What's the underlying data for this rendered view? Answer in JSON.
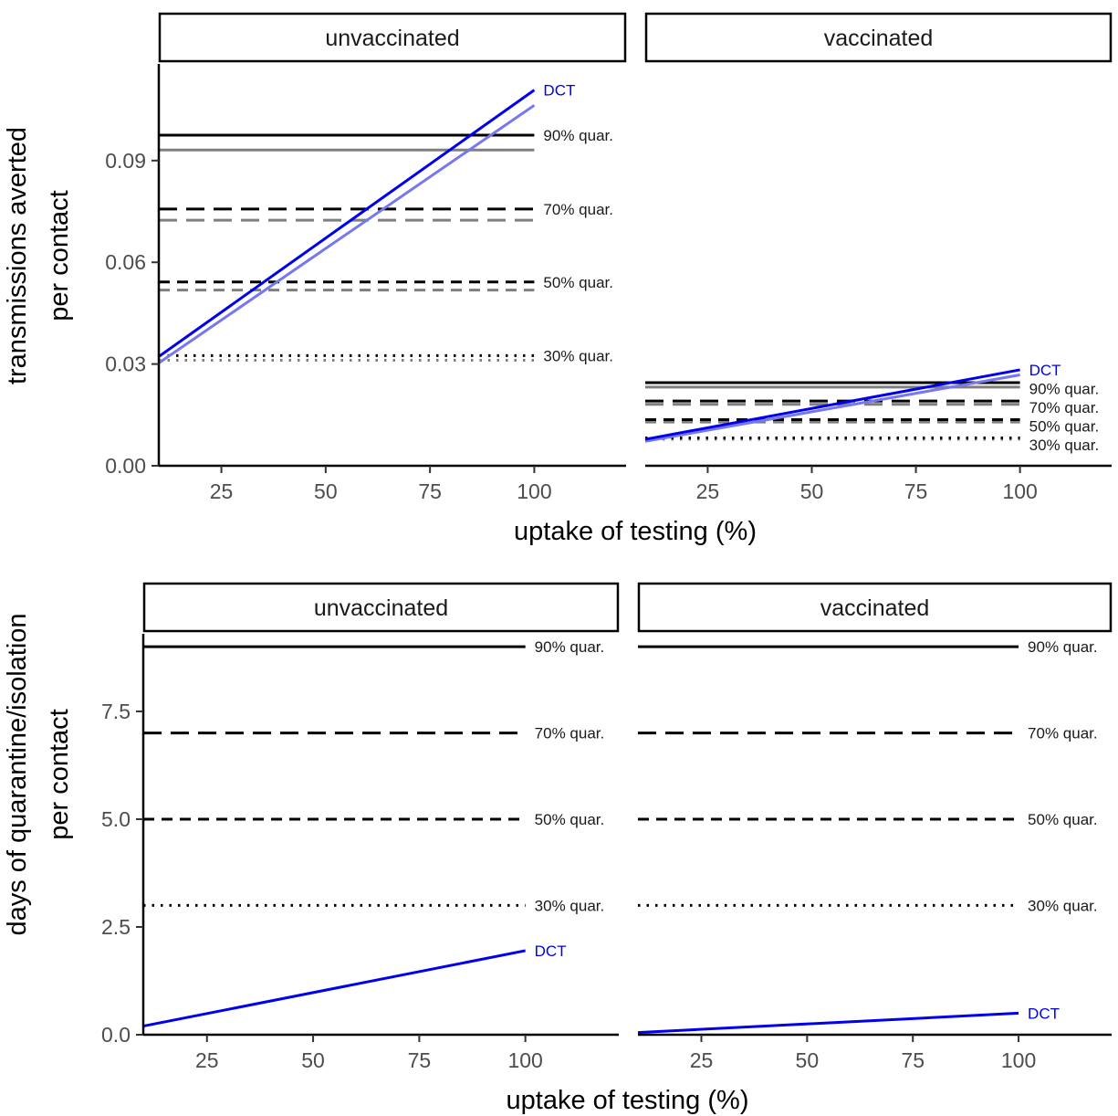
{
  "chart_data": [
    {
      "type": "line",
      "ylabel_lines": [
        "transmissions averted",
        "per contact"
      ],
      "xlabel": "uptake of testing (%)",
      "xlim": [
        10,
        122
      ],
      "ylim": [
        0,
        0.1185
      ],
      "xticks": [
        25,
        50,
        75,
        100
      ],
      "yticks": [
        0.0,
        0.03,
        0.06,
        0.09
      ],
      "yticks_labels": [
        "0.00",
        "0.03",
        "0.06",
        "0.09"
      ],
      "panels": [
        {
          "strip": "unvaccinated",
          "dct_label": "DCT",
          "dct": [
            {
              "x": [
                10,
                100
              ],
              "y": [
                0.0322,
                0.1108
              ],
              "color": "#0000EE"
            },
            {
              "x": [
                10,
                100
              ],
              "y": [
                0.0303,
                0.1063
              ],
              "color": "#7777EE"
            }
          ],
          "hlines": [
            {
              "label": "90% quar.",
              "dash": "solid",
              "black": 0.0975,
              "grey": 0.0931
            },
            {
              "label": "70% quar.",
              "dash": "longdash",
              "black": 0.0757,
              "grey": 0.0724
            },
            {
              "label": "50% quar.",
              "dash": "dashed",
              "black": 0.0542,
              "grey": 0.0518
            },
            {
              "label": "30% quar.",
              "dash": "dotted",
              "black": 0.0325,
              "grey": 0.0311
            }
          ]
        },
        {
          "strip": "vaccinated",
          "dct_label": "DCT",
          "dct": [
            {
              "x": [
                10,
                100
              ],
              "y": [
                0.0078,
                0.0283
              ],
              "color": "#0000EE"
            },
            {
              "x": [
                10,
                100
              ],
              "y": [
                0.0072,
                0.0268
              ],
              "color": "#7777EE"
            }
          ],
          "hlines": [
            {
              "label": "90% quar.",
              "dash": "solid",
              "black": 0.0245,
              "grey": 0.0232
            },
            {
              "label": "70% quar.",
              "dash": "longdash",
              "black": 0.0191,
              "grey": 0.0181
            },
            {
              "label": "50% quar.",
              "dash": "dashed",
              "black": 0.0136,
              "grey": 0.0129
            },
            {
              "label": "30% quar.",
              "dash": "dotted",
              "black": 0.0082,
              "grey": 0.0078
            }
          ]
        }
      ]
    },
    {
      "type": "line",
      "ylabel_lines": [
        "days of quarantine/isolation",
        "per contact"
      ],
      "xlabel": "uptake of testing (%)",
      "xlim": [
        10,
        122
      ],
      "ylim": [
        0,
        9.3
      ],
      "xticks": [
        25,
        50,
        75,
        100
      ],
      "yticks": [
        0.0,
        2.5,
        5.0,
        7.5
      ],
      "yticks_labels": [
        "0.0",
        "2.5",
        "5.0",
        "7.5"
      ],
      "panels": [
        {
          "strip": "unvaccinated",
          "dct_label": "DCT",
          "dct": [
            {
              "x": [
                10,
                100
              ],
              "y": [
                0.2,
                1.95
              ],
              "color": "#0000EE"
            }
          ],
          "hlines": [
            {
              "label": "90% quar.",
              "dash": "solid",
              "black": 9.0
            },
            {
              "label": "70% quar.",
              "dash": "longdash",
              "black": 7.0
            },
            {
              "label": "50% quar.",
              "dash": "dashed",
              "black": 5.0
            },
            {
              "label": "30% quar.",
              "dash": "dotted",
              "black": 3.0
            }
          ]
        },
        {
          "strip": "vaccinated",
          "dct_label": "DCT",
          "dct": [
            {
              "x": [
                10,
                100
              ],
              "y": [
                0.05,
                0.5
              ],
              "color": "#0000EE"
            }
          ],
          "hlines": [
            {
              "label": "90% quar.",
              "dash": "solid",
              "black": 9.0
            },
            {
              "label": "70% quar.",
              "dash": "longdash",
              "black": 7.0
            },
            {
              "label": "50% quar.",
              "dash": "dashed",
              "black": 5.0
            },
            {
              "label": "30% quar.",
              "dash": "dotted",
              "black": 3.0
            }
          ]
        }
      ]
    }
  ]
}
